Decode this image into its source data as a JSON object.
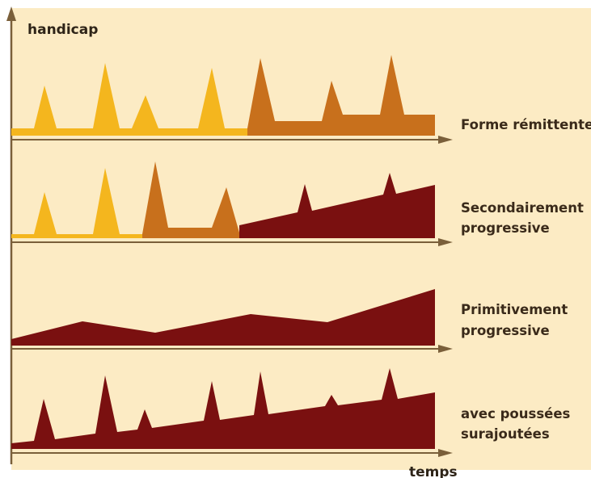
{
  "diagram": {
    "y_axis_label": "handicap",
    "x_axis_label": "temps",
    "rows": [
      {
        "label_lines": [
          "Forme rémittente"
        ]
      },
      {
        "label_lines": [
          "Secondairement",
          "progressive"
        ]
      },
      {
        "label_lines": [
          "Primitivement",
          "progressive"
        ]
      },
      {
        "label_lines": [
          "avec poussées",
          "surajoutées"
        ]
      }
    ]
  },
  "colors": {
    "background": "#fcebc4",
    "axis": "#7a5f3a",
    "relapse_yellow": "#f4b61e",
    "relapse_orange": "#c8701c",
    "progressive_darkred": "#7a1010"
  }
}
